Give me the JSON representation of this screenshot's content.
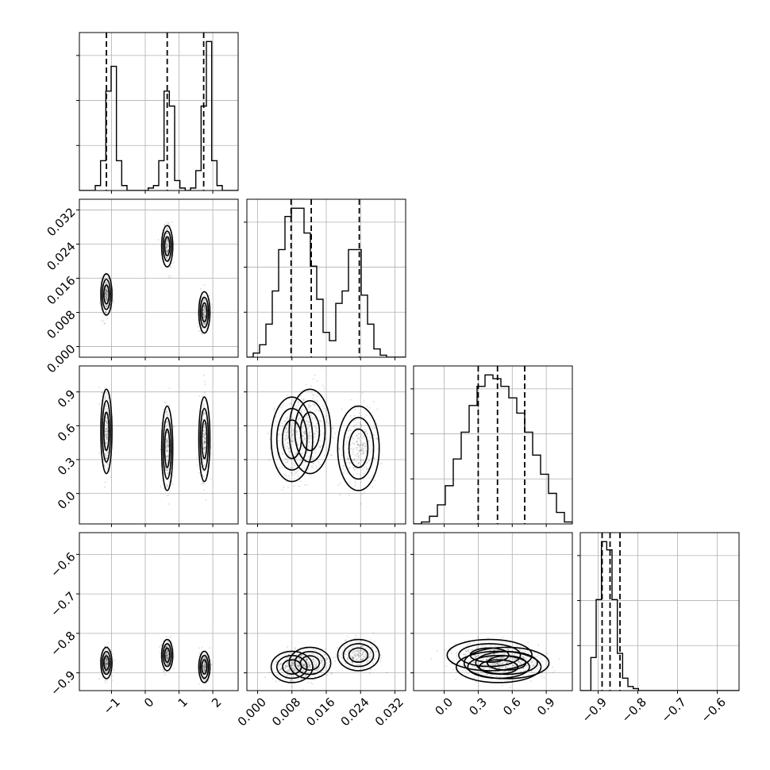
{
  "chart_data": {
    "type": "corner",
    "parameters": [
      {
        "index": 0,
        "range": [
          -1.95,
          2.75
        ],
        "ticks": [
          -1,
          0,
          1,
          2
        ],
        "tick_labels": [
          "−1",
          "0",
          "1",
          "2"
        ],
        "quantiles": [
          -1.15,
          0.65,
          1.73
        ]
      },
      {
        "index": 1,
        "range": [
          -0.0025,
          0.0345
        ],
        "ticks": [
          0.0,
          0.008,
          0.016,
          0.024,
          0.032
        ],
        "tick_labels": [
          "0.000",
          "0.008",
          "0.016",
          "0.024",
          "0.032"
        ],
        "quantiles": [
          0.0078,
          0.0125,
          0.0237
        ]
      },
      {
        "index": 2,
        "range": [
          -0.27,
          1.13
        ],
        "ticks": [
          0.0,
          0.3,
          0.6,
          0.9
        ],
        "tick_labels": [
          "0.0",
          "0.3",
          "0.6",
          "0.9"
        ],
        "quantiles": [
          0.3,
          0.47,
          0.71
        ]
      },
      {
        "index": 3,
        "range": [
          -0.945,
          -0.545
        ],
        "ticks": [
          -0.9,
          -0.8,
          -0.7,
          -0.6
        ],
        "tick_labels": [
          "−0.9",
          "−0.8",
          "−0.7",
          "−0.6"
        ],
        "quantiles": [
          -0.89,
          -0.87,
          -0.845
        ]
      }
    ],
    "histograms": [
      {
        "param": 0,
        "bins": [
          -1.95,
          2.75
        ],
        "counts": [
          0,
          0,
          0,
          0.1,
          0.6,
          2.0,
          2.5,
          0.6,
          0.1,
          0,
          0,
          0,
          0,
          0.05,
          0.1,
          0.6,
          2.0,
          1.7,
          0.2,
          0.05,
          0,
          0.05,
          0.4,
          1.7,
          3.0,
          0.6,
          0.1,
          0,
          0,
          0
        ]
      },
      {
        "param": 1,
        "bins": [
          -0.0025,
          0.0345
        ],
        "counts": [
          0,
          0.1,
          0.3,
          0.8,
          1.6,
          2.6,
          3.4,
          3.6,
          3.6,
          3.0,
          2.2,
          1.4,
          0.6,
          0.4,
          1.3,
          1.6,
          2.6,
          2.6,
          1.5,
          0.8,
          0.2,
          0.05,
          0,
          0,
          0
        ]
      },
      {
        "param": 2,
        "bins": [
          -0.27,
          1.13
        ],
        "counts": [
          0,
          0.05,
          0.2,
          0.5,
          1.0,
          1.7,
          2.4,
          3.1,
          3.6,
          3.9,
          3.8,
          3.6,
          3.3,
          2.9,
          2.4,
          1.8,
          1.3,
          0.8,
          0.3,
          0.05
        ]
      },
      {
        "param": 3,
        "bins": [
          -0.945,
          -0.545
        ],
        "counts": [
          0,
          0,
          0.8,
          2.2,
          3.6,
          3.4,
          2.2,
          0.9,
          0.3,
          0.1,
          0.05,
          0,
          0,
          0,
          0,
          0,
          0,
          0,
          0,
          0,
          0,
          0,
          0,
          0,
          0,
          0,
          0,
          0,
          0,
          0
        ]
      }
    ],
    "modes": [
      [
        -1.15,
        0.0122,
        0.55,
        -0.875
      ],
      [
        0.65,
        0.0235,
        0.4,
        -0.855
      ],
      [
        1.75,
        0.008,
        0.48,
        -0.885
      ]
    ],
    "grid": true
  }
}
